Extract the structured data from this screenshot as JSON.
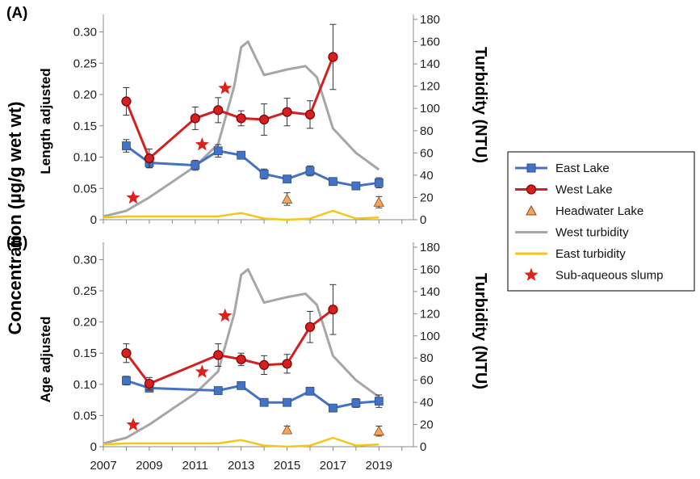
{
  "figure": {
    "shared_ylabel": "Concentration (µg/g wet wt)",
    "x_tick_labels": [
      "2007",
      "2009",
      "2011",
      "2013",
      "2015",
      "2017",
      "2019"
    ],
    "colors": {
      "east_lake": "#4472C4",
      "west_lake": "#D42020",
      "headwater": "#F4A460",
      "west_turbidity": "#A6A6A6",
      "east_turbidity": "#F5C518",
      "slump": "#E0201A"
    }
  },
  "legend": {
    "items": [
      {
        "label": "East Lake",
        "key": "east"
      },
      {
        "label": "West Lake",
        "key": "west"
      },
      {
        "label": "Headwater Lake",
        "key": "headwater"
      },
      {
        "label": "West turbidity",
        "key": "west_turb"
      },
      {
        "label": "East turbidity",
        "key": "east_turb"
      },
      {
        "label": "Sub-aqueous slump",
        "key": "slump"
      }
    ]
  },
  "chart_data": [
    {
      "type": "line",
      "panel_label": "(A)",
      "ylabel": "Length adjusted",
      "y2label": "Turbidity (NTU)",
      "x_range": [
        2007,
        2020.5
      ],
      "ylim": [
        0,
        0.32
      ],
      "y_ticks": [
        "0",
        "0.05",
        "0.10",
        "0.15",
        "0.20",
        "0.25",
        "0.30"
      ],
      "y2lim": [
        0,
        180
      ],
      "y2_ticks": [
        "0",
        "20",
        "40",
        "60",
        "80",
        "100",
        "120",
        "140",
        "160",
        "180"
      ],
      "series": [
        {
          "name": "East Lake",
          "key": "east",
          "x": [
            2008,
            2009,
            2011,
            2012,
            2013,
            2014,
            2015,
            2016,
            2017,
            2018,
            2019
          ],
          "y": [
            0.118,
            0.091,
            0.087,
            0.11,
            0.103,
            0.073,
            0.065,
            0.078,
            0.061,
            0.054,
            0.059
          ],
          "err": [
            0.01,
            0.008,
            0.008,
            0.01,
            0.006,
            0.008,
            0.005,
            0.008,
            0.004,
            0.004,
            0.008
          ]
        },
        {
          "name": "West Lake",
          "key": "west",
          "x": [
            2008,
            2009,
            2011,
            2012,
            2013,
            2014,
            2015,
            2016,
            2017
          ],
          "y": [
            0.189,
            0.098,
            0.162,
            0.175,
            0.162,
            0.16,
            0.172,
            0.168,
            0.26
          ],
          "err": [
            0.022,
            0.015,
            0.018,
            0.02,
            0.012,
            0.025,
            0.022,
            0.022,
            0.052
          ]
        },
        {
          "name": "Headwater Lake",
          "key": "headwater",
          "x": [
            2015,
            2019
          ],
          "y": [
            0.033,
            0.028
          ],
          "err": [
            0.01,
            0.009
          ]
        },
        {
          "name": "West turbidity",
          "key": "west_turb",
          "axis": "right",
          "x": [
            2007,
            2008,
            2009,
            2010,
            2011,
            2012,
            2012.7,
            2013,
            2013.3,
            2014,
            2015,
            2015.8,
            2016.3,
            2017,
            2018,
            2019
          ],
          "y": [
            3,
            8,
            20,
            34,
            48,
            68,
            120,
            155,
            160,
            130,
            135,
            138,
            128,
            82,
            60,
            45
          ]
        },
        {
          "name": "East turbidity",
          "key": "east_turb",
          "axis": "right",
          "x": [
            2007,
            2008,
            2009,
            2011,
            2012,
            2013,
            2014,
            2015,
            2016,
            2017,
            2018,
            2019
          ],
          "y": [
            2,
            3,
            3,
            3,
            3,
            6,
            1,
            0,
            1,
            8,
            1,
            2
          ]
        },
        {
          "name": "Sub-aqueous slump",
          "key": "slump",
          "x": [
            2008.3,
            2011.3,
            2012.3
          ],
          "y": [
            0.035,
            0.12,
            0.21
          ]
        }
      ]
    },
    {
      "type": "line",
      "panel_label": "(B)",
      "ylabel": "Age adjusted",
      "y2label": "Turbidity (NTU)",
      "x_range": [
        2007,
        2020.5
      ],
      "ylim": [
        0,
        0.32
      ],
      "y_ticks": [
        "0",
        "0.05",
        "0.10",
        "0.15",
        "0.20",
        "0.25",
        "0.30"
      ],
      "y2lim": [
        0,
        180
      ],
      "y2_ticks": [
        "0",
        "20",
        "40",
        "60",
        "80",
        "100",
        "120",
        "140",
        "160",
        "180"
      ],
      "series": [
        {
          "name": "East Lake",
          "key": "east",
          "x": [
            2008,
            2009,
            2012,
            2013,
            2014,
            2015,
            2016,
            2017,
            2018,
            2019
          ],
          "y": [
            0.106,
            0.094,
            0.09,
            0.098,
            0.071,
            0.071,
            0.089,
            0.062,
            0.07,
            0.073
          ],
          "err": [
            0.007,
            0.006,
            0.006,
            0.005,
            0.004,
            0.004,
            0.006,
            0.005,
            0.007,
            0.01
          ]
        },
        {
          "name": "West Lake",
          "key": "west",
          "x": [
            2008,
            2009,
            2012,
            2013,
            2014,
            2015,
            2016,
            2017
          ],
          "y": [
            0.15,
            0.101,
            0.147,
            0.14,
            0.131,
            0.133,
            0.192,
            0.22
          ],
          "err": [
            0.015,
            0.01,
            0.018,
            0.01,
            0.015,
            0.015,
            0.025,
            0.04
          ]
        },
        {
          "name": "Headwater Lake",
          "key": "headwater",
          "x": [
            2015,
            2019
          ],
          "y": [
            0.027,
            0.025
          ],
          "err": [
            0.006,
            0.008
          ]
        },
        {
          "name": "West turbidity",
          "key": "west_turb",
          "axis": "right",
          "x": [
            2007,
            2008,
            2009,
            2010,
            2011,
            2012,
            2012.7,
            2013,
            2013.3,
            2014,
            2015,
            2015.8,
            2016.3,
            2017,
            2018,
            2019
          ],
          "y": [
            3,
            8,
            20,
            34,
            48,
            68,
            120,
            155,
            160,
            130,
            135,
            138,
            128,
            82,
            60,
            45
          ]
        },
        {
          "name": "East turbidity",
          "key": "east_turb",
          "axis": "right",
          "x": [
            2007,
            2008,
            2009,
            2011,
            2012,
            2013,
            2014,
            2015,
            2016,
            2017,
            2018,
            2019
          ],
          "y": [
            2,
            3,
            3,
            3,
            3,
            6,
            1,
            0,
            1,
            8,
            1,
            2
          ]
        },
        {
          "name": "Sub-aqueous slump",
          "key": "slump",
          "x": [
            2008.3,
            2011.3,
            2012.3
          ],
          "y": [
            0.035,
            0.12,
            0.21
          ]
        }
      ]
    }
  ]
}
